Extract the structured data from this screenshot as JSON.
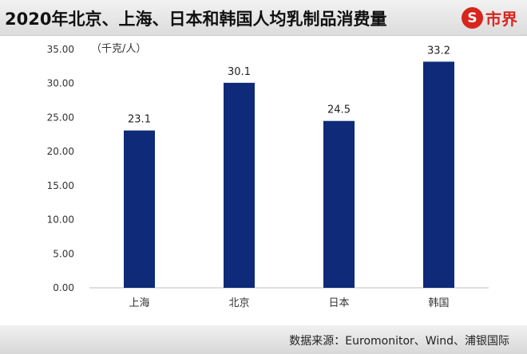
{
  "header": {
    "title": "2020年北京、上海、日本和韩国人均乳制品消费量",
    "brand_icon_char": "S",
    "brand_name": "市界"
  },
  "colors": {
    "bar": "#0e2a78",
    "brand": "#d7261e"
  },
  "chart_data": {
    "type": "bar",
    "categories": [
      "上海",
      "北京",
      "日本",
      "韩国"
    ],
    "values": [
      23.1,
      30.1,
      24.5,
      33.2
    ],
    "value_labels": [
      "23.1",
      "30.1",
      "24.5",
      "33.2"
    ],
    "title": "",
    "unit_label": "（千克/人）",
    "xlabel": "",
    "ylabel": "",
    "ylim": [
      0,
      35
    ],
    "yticks": [
      0,
      5,
      10,
      15,
      20,
      25,
      30,
      35
    ],
    "ytick_labels": [
      "0.00",
      "5.00",
      "10.00",
      "15.00",
      "20.00",
      "25.00",
      "30.00",
      "35.00"
    ],
    "grid": false,
    "legend": "none"
  },
  "footer": {
    "source": "数据来源：Euromonitor、Wind、浦银国际"
  }
}
